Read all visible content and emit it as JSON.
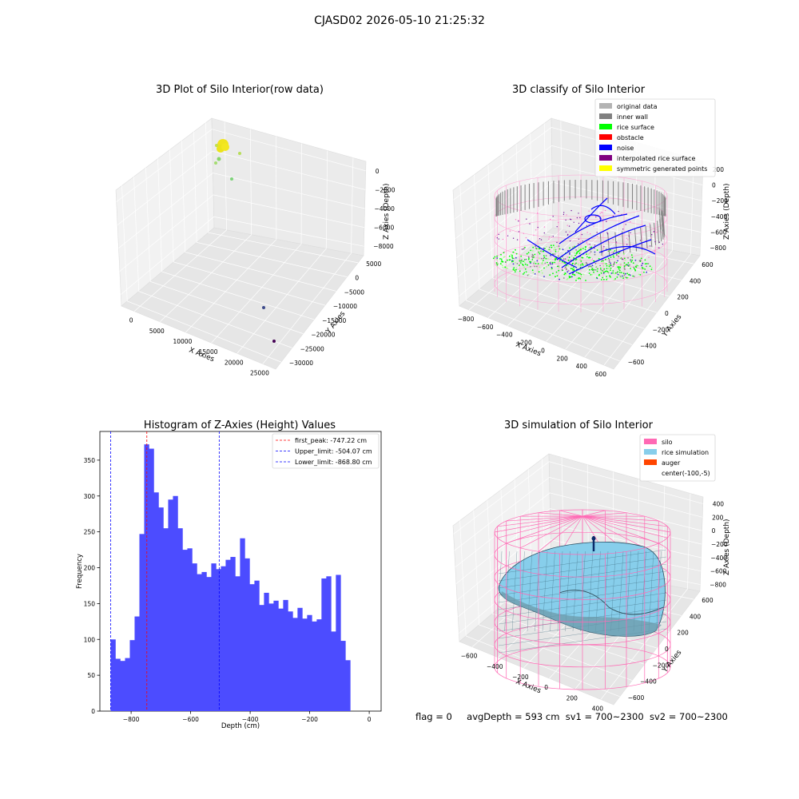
{
  "suptitle": "CJASD02 2026-05-10 21:25:32",
  "footer": {
    "flag": "flag = 0",
    "avg": "avgDepth = 593 cm",
    "sv1": "sv1 = 700~2300",
    "sv2": "sv2 = 700~2300"
  },
  "chart_data": [
    {
      "type": "scatter",
      "title": "3D Plot of Silo Interior(row data)",
      "xlabel": "X Axies",
      "ylabel": "Y Axies",
      "zlabel": "Z Axies (Depth)",
      "x_ticks": [
        "0",
        "5000",
        "10000",
        "15000",
        "20000",
        "25000"
      ],
      "y_ticks": [
        "5000",
        "0",
        "−5000",
        "−10000",
        "−15000",
        "−20000",
        "−25000",
        "−30000"
      ],
      "z_ticks": [
        "0",
        "−2000",
        "−4000",
        "−6000",
        "−8000"
      ]
    },
    {
      "type": "scatter",
      "title": "3D classify of Silo Interior",
      "xlabel": "X Axies",
      "ylabel": "Y Axies",
      "zlabel": "Z Axies (Depth)",
      "x_ticks": [
        "−800",
        "−600",
        "−400",
        "−200",
        "0",
        "200",
        "400",
        "600"
      ],
      "y_ticks": [
        "600",
        "400",
        "200",
        "0",
        "−200",
        "−400",
        "−600"
      ],
      "z_ticks": [
        "200",
        "0",
        "−200",
        "−400",
        "−600",
        "−800"
      ],
      "legend": [
        {
          "label": "original data",
          "color": "#b3b3b3"
        },
        {
          "label": "inner wall",
          "color": "#808080"
        },
        {
          "label": "rice surface",
          "color": "#00ff00"
        },
        {
          "label": "obstacle",
          "color": "#ff0000"
        },
        {
          "label": "noise",
          "color": "#0000ff"
        },
        {
          "label": "interpolated rice surface",
          "color": "#800080"
        },
        {
          "label": "symmetric generated points",
          "color": "#ffff00"
        }
      ]
    },
    {
      "type": "bar",
      "title": "Histogram of Z-Axies (Height) Values",
      "xlabel": "Depth (cm)",
      "ylabel": "Frequency",
      "xlim": [
        -905,
        40
      ],
      "ylim": [
        0,
        390
      ],
      "x_ticks": [
        -800,
        -600,
        -400,
        -200,
        0
      ],
      "x_tick_labels": [
        "−800",
        "−600",
        "−400",
        "−200",
        "0"
      ],
      "y_ticks": [
        0,
        50,
        100,
        150,
        200,
        250,
        300,
        350
      ],
      "bin_start": -868.8,
      "bin_width": 16.1,
      "values": [
        100,
        73,
        70,
        74,
        99,
        132,
        247,
        372,
        366,
        305,
        284,
        255,
        295,
        300,
        255,
        225,
        227,
        206,
        191,
        194,
        187,
        206,
        198,
        202,
        211,
        215,
        188,
        241,
        213,
        177,
        182,
        148,
        165,
        150,
        154,
        143,
        155,
        139,
        130,
        144,
        129,
        134,
        125,
        128,
        185,
        188,
        111,
        190,
        98,
        71
      ],
      "bar_color": "#4c4cff",
      "lines": [
        {
          "label": "first_peak: -747.22 cm",
          "x": -747.22,
          "color": "#ff0000"
        },
        {
          "label": "Upper_limit: -504.07 cm",
          "x": -504.07,
          "color": "#0000ff"
        },
        {
          "label": "Lower_limit: -868.80 cm",
          "x": -868.8,
          "color": "#0000ff"
        }
      ]
    },
    {
      "type": "surface",
      "title": "3D simulation of Silo Interior",
      "xlabel": "X Axies",
      "ylabel": "Y Axies",
      "zlabel": "Z Axies (Depth)",
      "x_ticks": [
        "−600",
        "−400",
        "−200",
        "0",
        "200",
        "400"
      ],
      "y_ticks": [
        "600",
        "400",
        "200",
        "0",
        "−200",
        "−400",
        "−600"
      ],
      "z_ticks": [
        "400",
        "200",
        "0",
        "−200",
        "−400",
        "−600",
        "−800"
      ],
      "legend": [
        {
          "label": "silo",
          "color": "#ff69b4"
        },
        {
          "label": "rice simulation",
          "color": "#87ceeb"
        },
        {
          "label": "auger",
          "color": "#ff4500"
        },
        {
          "label": "center(-100,-5)",
          "color": ""
        }
      ]
    }
  ]
}
